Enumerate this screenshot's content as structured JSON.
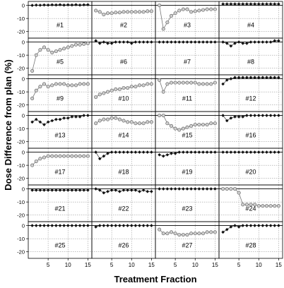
{
  "chart_data": {
    "type": "line",
    "ylabel": "Dose Difference from plan (%)",
    "xlabel": "Treatment Fraction",
    "x_ticks": [
      5,
      10,
      15
    ],
    "y_ticks": [
      0,
      -10,
      -20
    ],
    "xlim": [
      0,
      16
    ],
    "ylim": [
      -25,
      3
    ],
    "grid": true,
    "layout": {
      "rows": 7,
      "cols": 4
    },
    "panels": [
      {
        "label": "#1",
        "marker": "diamond",
        "values": [
          0,
          0.2,
          0.1,
          0.3,
          0.2,
          0.4,
          0.3,
          0.5,
          0.2,
          0.4,
          0.3,
          0.5,
          0.2,
          0.4,
          0.5
        ]
      },
      {
        "label": "#2",
        "marker": "circle",
        "values": [
          -4,
          -5,
          -7,
          -6,
          -6,
          -5.5,
          -5.5,
          -5,
          -5,
          -5,
          -5,
          -5,
          -5,
          -4.5,
          -4.5
        ]
      },
      {
        "label": "#3",
        "marker": "circle",
        "values": [
          0,
          -18,
          -13,
          -8,
          -6,
          -4,
          -3,
          -3,
          -5,
          -4.5,
          -4,
          -3.5,
          -3,
          -3,
          -3
        ]
      },
      {
        "label": "#4",
        "marker": "diamond",
        "values": [
          1,
          1,
          1,
          1,
          1,
          1,
          1,
          1,
          1,
          1,
          1,
          1,
          1,
          1,
          1
        ]
      },
      {
        "label": "#5",
        "marker": "circle",
        "values": [
          -22,
          -10,
          -6,
          -4,
          -6,
          -8,
          -7,
          -6,
          -5,
          -4,
          -3,
          -2,
          -2,
          -1.5,
          -1
        ]
      },
      {
        "label": "#6",
        "marker": "diamond",
        "values": [
          1,
          -1,
          0,
          -1,
          -1,
          0,
          0,
          0,
          0,
          -1,
          0,
          0,
          0,
          0,
          0
        ]
      },
      {
        "label": "#7",
        "marker": "diamond",
        "values": [
          0,
          0,
          0,
          0,
          0,
          0,
          0,
          0,
          0,
          0,
          0,
          0,
          0,
          0,
          0
        ]
      },
      {
        "label": "#8",
        "marker": "diamond",
        "values": [
          0,
          -1,
          -3,
          -1,
          0,
          -1,
          -1,
          0,
          0,
          0,
          0,
          0,
          0,
          1,
          1
        ]
      },
      {
        "label": "#9",
        "marker": "circle",
        "values": [
          -15,
          -9,
          -6,
          -4,
          -6,
          -5,
          -4,
          -4,
          -4,
          -5,
          -5,
          -5,
          -4,
          -4,
          -4
        ]
      },
      {
        "label": "#10",
        "marker": "circle",
        "values": [
          -14,
          -12,
          -11,
          -10,
          -9,
          -8,
          -8,
          -7,
          -7,
          -6,
          -6,
          -5,
          -5,
          -4,
          -4
        ]
      },
      {
        "label": "#11",
        "marker": "circle",
        "values": [
          -1,
          -10,
          -4,
          -3,
          -3,
          -3,
          -3,
          -3,
          -3,
          -3,
          -4,
          -4,
          -4,
          -4,
          -3
        ]
      },
      {
        "label": "#12",
        "marker": "diamond",
        "values": [
          -4,
          -1,
          0,
          1,
          1,
          1,
          1,
          1,
          1,
          1,
          1,
          1,
          1,
          1,
          1
        ]
      },
      {
        "label": "#13",
        "marker": "diamond",
        "values": [
          -5,
          -3,
          -5,
          -7,
          -5,
          -4,
          -3,
          -3,
          -2,
          -2,
          -1,
          -1,
          -1,
          0,
          0
        ]
      },
      {
        "label": "#14",
        "marker": "circle",
        "values": [
          -6,
          -4,
          -3,
          -3,
          -2,
          -2,
          -3,
          -4,
          -5,
          -5,
          -6,
          -6,
          -6,
          -5,
          -5
        ]
      },
      {
        "label": "#15",
        "marker": "circle",
        "values": [
          0,
          0,
          -6,
          -8,
          -10,
          -11,
          -10,
          -9,
          -8,
          -7,
          -7,
          -7,
          -7,
          -6,
          -6
        ]
      },
      {
        "label": "#16",
        "marker": "diamond",
        "values": [
          0,
          -4,
          -2,
          -1,
          -1,
          -1,
          0,
          0,
          0,
          0,
          0,
          0,
          0,
          0,
          0
        ]
      },
      {
        "label": "#17",
        "marker": "circle",
        "values": [
          -10,
          -7,
          -5,
          -4,
          -3,
          -3,
          -3,
          -3,
          -3,
          -3,
          -3,
          -3,
          -3,
          -3,
          -3
        ]
      },
      {
        "label": "#18",
        "marker": "diamond",
        "values": [
          0,
          -5,
          -3,
          -1,
          0,
          0,
          0,
          0,
          0,
          0,
          0,
          0,
          0,
          0,
          0
        ]
      },
      {
        "label": "#19",
        "marker": "diamond",
        "values": [
          -2,
          -3,
          -2,
          -1,
          -1,
          0,
          0,
          0,
          0,
          0,
          0,
          0,
          0,
          0,
          0
        ]
      },
      {
        "label": "#20",
        "marker": "diamond",
        "values": [
          0,
          0,
          0,
          0,
          0,
          0,
          0,
          0,
          0,
          0,
          0,
          0,
          0,
          0,
          0
        ]
      },
      {
        "label": "#21",
        "marker": "diamond",
        "values": [
          -1,
          -1,
          -1,
          -1,
          -1,
          -1,
          -1,
          -1,
          -1,
          -1,
          -1,
          -1,
          -1,
          -1,
          -1
        ]
      },
      {
        "label": "#22",
        "marker": "diamond",
        "values": [
          0,
          -1,
          -3,
          -2,
          -1,
          -1,
          -2,
          -1,
          -1,
          -1,
          -1,
          -2,
          -1,
          -2,
          -2
        ]
      },
      {
        "label": "#23",
        "marker": "diamond",
        "values": [
          0,
          0,
          0,
          0,
          0,
          0,
          0,
          0,
          0,
          0,
          0,
          0,
          0,
          0,
          0
        ]
      },
      {
        "label": "#24",
        "marker": "circle",
        "values": [
          0,
          0,
          0,
          0,
          -3,
          -12,
          -12,
          -12,
          -12,
          -13,
          -13,
          -13,
          -13,
          -13,
          -13
        ]
      },
      {
        "label": "#25",
        "marker": "diamond",
        "values": [
          0,
          0,
          0,
          0,
          0,
          0,
          0,
          0,
          0,
          0,
          0,
          0,
          0,
          0,
          0
        ]
      },
      {
        "label": "#26",
        "marker": "diamond",
        "values": [
          -1,
          0,
          0,
          0,
          0,
          0,
          0,
          0,
          0,
          0,
          0,
          0,
          0,
          0,
          0
        ]
      },
      {
        "label": "#27",
        "marker": "circle",
        "values": [
          -3,
          -6,
          -6,
          -5,
          -6,
          -7,
          -7,
          -7,
          -6,
          -6,
          -6,
          -6,
          -5,
          -5,
          -5
        ]
      },
      {
        "label": "#28",
        "marker": "diamond",
        "values": [
          -5,
          -3,
          -1,
          0,
          -1,
          0,
          0,
          0,
          0,
          0,
          0,
          0,
          0,
          0,
          0
        ]
      }
    ]
  }
}
